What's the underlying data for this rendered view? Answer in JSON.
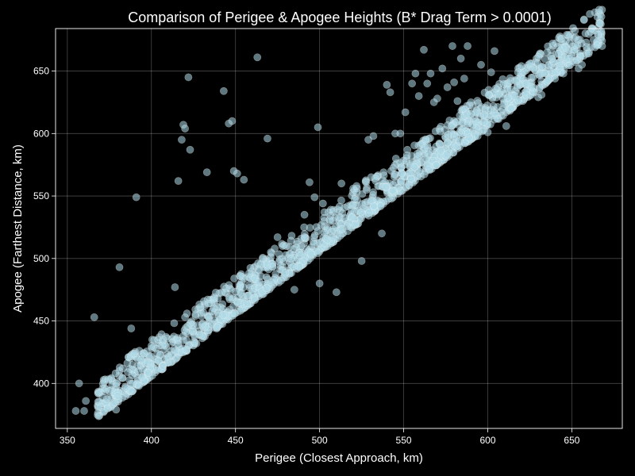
{
  "chart_data": {
    "type": "scatter",
    "title": "Comparison of Perigee & Apogee Heights (B* Drag Term > 0.0001)",
    "xlabel": "Perigee (Closest Approach, km)",
    "ylabel": "Apogee (Farthest Distance, km)",
    "xlim": [
      343,
      680
    ],
    "ylim": [
      364,
      684
    ],
    "xticks": [
      350,
      400,
      450,
      500,
      550,
      600,
      650
    ],
    "yticks": [
      400,
      450,
      500,
      550,
      600,
      650
    ],
    "grid": true,
    "legend": "none",
    "colors": {
      "background": "#000000",
      "marker_fill": "#add8e6",
      "marker_edge": "#ffffff",
      "text": "#ffffff"
    },
    "points": [
      [
        355,
        378
      ],
      [
        360,
        378
      ],
      [
        357,
        400
      ],
      [
        361,
        386
      ],
      [
        366,
        453
      ],
      [
        370,
        381
      ],
      [
        372,
        378
      ],
      [
        374,
        380
      ],
      [
        375,
        394
      ],
      [
        377,
        383
      ],
      [
        378,
        385
      ],
      [
        379,
        379
      ],
      [
        380,
        390
      ],
      [
        381,
        493
      ],
      [
        383,
        412
      ],
      [
        388,
        444
      ],
      [
        390,
        424
      ],
      [
        391,
        549
      ],
      [
        394,
        419
      ],
      [
        400,
        430
      ],
      [
        404,
        435
      ],
      [
        407,
        435
      ],
      [
        414,
        477
      ],
      [
        416,
        562
      ],
      [
        418,
        595
      ],
      [
        419,
        607
      ],
      [
        420,
        604
      ],
      [
        422,
        645
      ],
      [
        423,
        587
      ],
      [
        429,
        461
      ],
      [
        433,
        569
      ],
      [
        434,
        464
      ],
      [
        443,
        634
      ],
      [
        446,
        608
      ],
      [
        448,
        610
      ],
      [
        449,
        570
      ],
      [
        451,
        568
      ],
      [
        453,
        486
      ],
      [
        455,
        563
      ],
      [
        458,
        488
      ],
      [
        463,
        661
      ],
      [
        465,
        495
      ],
      [
        469,
        596
      ],
      [
        471,
        505
      ],
      [
        475,
        517
      ],
      [
        485,
        475
      ],
      [
        491,
        535
      ],
      [
        494,
        561
      ],
      [
        497,
        549
      ],
      [
        499,
        605
      ],
      [
        500,
        480
      ],
      [
        502,
        544
      ],
      [
        506,
        531
      ],
      [
        510,
        473
      ],
      [
        513,
        560
      ],
      [
        520,
        556
      ],
      [
        522,
        558
      ],
      [
        525,
        498
      ],
      [
        529,
        595
      ],
      [
        532,
        598
      ],
      [
        533,
        564
      ],
      [
        537,
        520
      ],
      [
        540,
        639
      ],
      [
        542,
        633
      ],
      [
        545,
        600
      ],
      [
        548,
        600
      ],
      [
        551,
        617
      ],
      [
        555,
        640
      ],
      [
        557,
        648
      ],
      [
        559,
        630
      ],
      [
        562,
        667
      ],
      [
        564,
        640
      ],
      [
        566,
        648
      ],
      [
        568,
        625
      ],
      [
        570,
        628
      ],
      [
        573,
        652
      ],
      [
        576,
        637
      ],
      [
        579,
        670
      ],
      [
        580,
        641
      ],
      [
        582,
        626
      ],
      [
        584,
        660
      ],
      [
        586,
        644
      ],
      [
        588,
        670
      ],
      [
        590,
        625
      ],
      [
        591,
        607
      ],
      [
        593,
        610
      ],
      [
        594,
        598
      ],
      [
        596,
        655
      ],
      [
        598,
        615
      ],
      [
        600,
        601
      ],
      [
        602,
        649
      ],
      [
        604,
        666
      ],
      [
        606,
        637
      ],
      [
        609,
        628
      ],
      [
        611,
        606
      ],
      [
        614,
        620
      ],
      [
        616,
        630
      ],
      [
        618,
        649
      ],
      [
        620,
        654
      ],
      [
        623,
        640
      ],
      [
        625,
        656
      ],
      [
        627,
        645
      ],
      [
        630,
        629
      ],
      [
        632,
        631
      ],
      [
        634,
        648
      ],
      [
        636,
        643
      ],
      [
        638,
        660
      ],
      [
        640,
        644
      ],
      [
        643,
        651
      ],
      [
        645,
        648
      ],
      [
        648,
        660
      ],
      [
        650,
        662
      ],
      [
        652,
        657
      ],
      [
        654,
        652
      ],
      [
        656,
        655
      ],
      [
        660,
        664
      ],
      [
        668,
        670
      ]
    ],
    "trend_band": {
      "x_range": [
        368,
        668
      ],
      "relation": "apogee ≈ perigee + small offset",
      "offset_range": [
        5,
        35
      ]
    }
  }
}
